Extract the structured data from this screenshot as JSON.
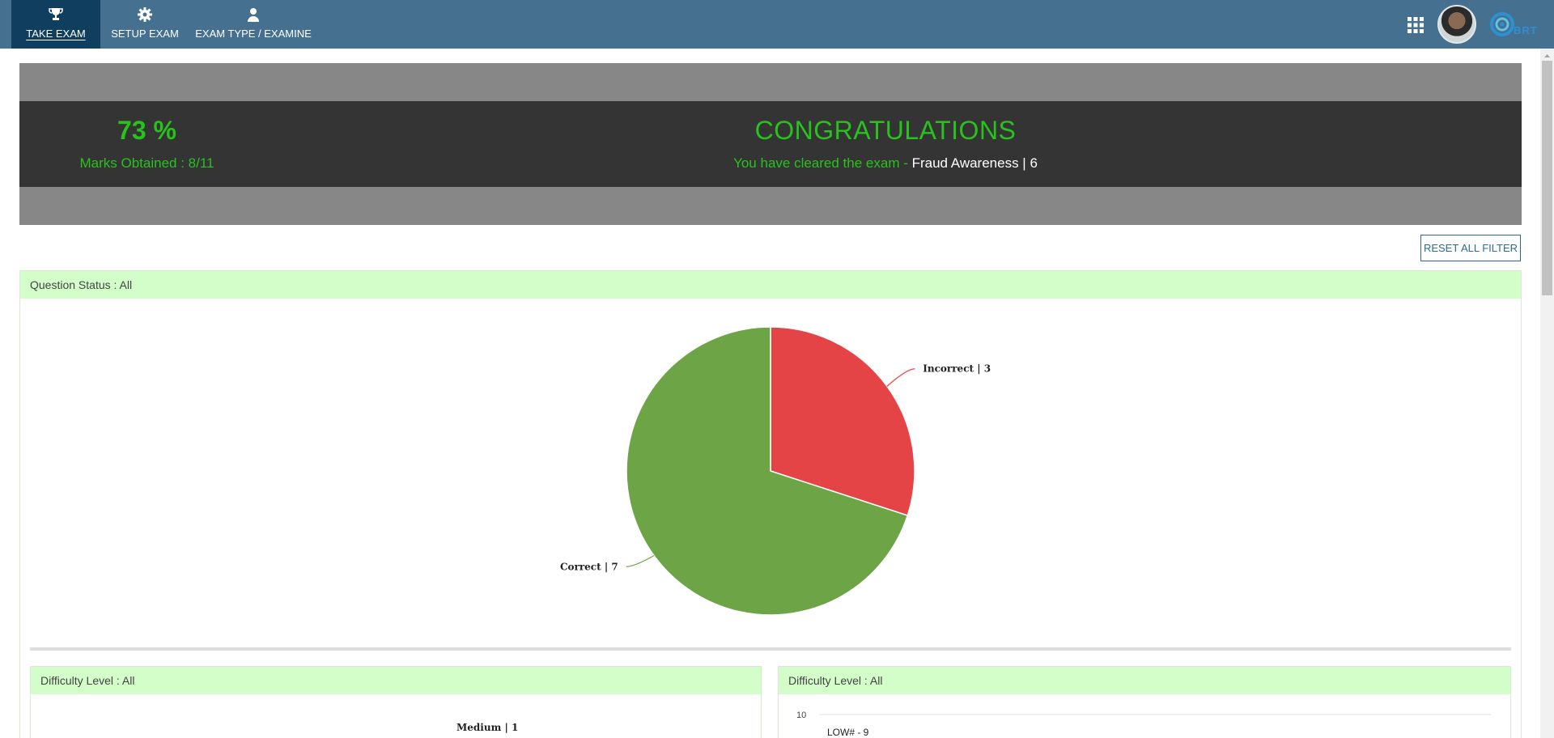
{
  "nav": {
    "items": [
      {
        "label": "TAKE EXAM",
        "icon": "trophy-icon"
      },
      {
        "label": "SETUP EXAM",
        "icon": "gear-icon"
      },
      {
        "label": "EXAM TYPE / EXAMINE",
        "icon": "user-icon"
      }
    ],
    "logo_text": "BRT"
  },
  "result": {
    "percent": "73 %",
    "marks": "Marks Obtained : 8/11",
    "headline": "CONGRATULATIONS",
    "cleared_prefix": "You have cleared the exam - ",
    "exam_name": "Fraud Awareness | 6"
  },
  "toolbar": {
    "reset_label": "RESET ALL FILTER"
  },
  "panels": {
    "question_status": "Question Status : All",
    "difficulty_left": "Difficulty Level : All",
    "difficulty_right": "Difficulty Level : All"
  },
  "colors": {
    "correct": "#6ca446",
    "incorrect": "#e54446",
    "accent": "#27c21c"
  },
  "chart_data": [
    {
      "type": "pie",
      "title": "",
      "slices": [
        {
          "label": "Correct | 7",
          "value": 7,
          "color": "#6ca446"
        },
        {
          "label": "Incorrect | 3",
          "value": 3,
          "color": "#e54446"
        }
      ]
    },
    {
      "type": "pie",
      "title": "",
      "partial": true,
      "labels": [
        "Medium | 1"
      ]
    },
    {
      "type": "bar",
      "partial": true,
      "ytick_top": "10",
      "data_labels": [
        "LOW# - 9"
      ]
    }
  ]
}
